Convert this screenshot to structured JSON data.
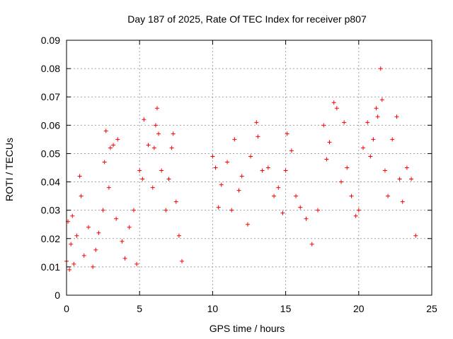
{
  "chart_data": {
    "type": "scatter",
    "title": "Day 187 of 2025, Rate Of TEC Index for receiver p807",
    "xlabel": "GPS time / hours",
    "ylabel": "ROTI / TECUs",
    "xlim": [
      0,
      25
    ],
    "ylim": [
      0,
      0.09
    ],
    "x_ticks": [
      0,
      5,
      10,
      15,
      20,
      25
    ],
    "x_tick_labels": [
      "0",
      "5",
      "10",
      "15",
      "20",
      "25"
    ],
    "y_ticks": [
      0,
      0.01,
      0.02,
      0.03,
      0.04,
      0.05,
      0.06,
      0.07,
      0.08,
      0.09
    ],
    "y_tick_labels": [
      "0",
      "0.01",
      "0.02",
      "0.03",
      "0.04",
      "0.05",
      "0.06",
      "0.07",
      "0.08",
      "0.09"
    ],
    "grid": true,
    "marker": "+",
    "color": "#ff0000",
    "data_gap_hours": [
      8.0,
      10.0
    ],
    "series": [
      {
        "points": [
          [
            0.0,
            0.012
          ],
          [
            0.1,
            0.026
          ],
          [
            0.2,
            0.009
          ],
          [
            0.3,
            0.018
          ],
          [
            0.4,
            0.028
          ],
          [
            0.5,
            0.011
          ],
          [
            0.7,
            0.021
          ],
          [
            0.9,
            0.042
          ],
          [
            1.0,
            0.035
          ],
          [
            1.2,
            0.014
          ],
          [
            1.5,
            0.024
          ],
          [
            1.8,
            0.01
          ],
          [
            2.0,
            0.016
          ],
          [
            2.2,
            0.022
          ],
          [
            2.5,
            0.03
          ],
          [
            2.6,
            0.047
          ],
          [
            2.7,
            0.058
          ],
          [
            2.9,
            0.038
          ],
          [
            3.0,
            0.052
          ],
          [
            3.2,
            0.053
          ],
          [
            3.4,
            0.027
          ],
          [
            3.5,
            0.055
          ],
          [
            3.8,
            0.019
          ],
          [
            4.0,
            0.013
          ],
          [
            4.3,
            0.024
          ],
          [
            4.6,
            0.03
          ],
          [
            4.8,
            0.011
          ],
          [
            5.0,
            0.044
          ],
          [
            5.2,
            0.041
          ],
          [
            5.3,
            0.062
          ],
          [
            5.6,
            0.053
          ],
          [
            5.9,
            0.038
          ],
          [
            6.0,
            0.052
          ],
          [
            6.1,
            0.06
          ],
          [
            6.2,
            0.066
          ],
          [
            6.3,
            0.057
          ],
          [
            6.5,
            0.044
          ],
          [
            6.8,
            0.03
          ],
          [
            7.0,
            0.041
          ],
          [
            7.2,
            0.052
          ],
          [
            7.3,
            0.057
          ],
          [
            7.5,
            0.033
          ],
          [
            7.7,
            0.021
          ],
          [
            7.9,
            0.012
          ],
          [
            10.0,
            0.049
          ],
          [
            10.2,
            0.045
          ],
          [
            10.4,
            0.031
          ],
          [
            10.6,
            0.039
          ],
          [
            11.0,
            0.047
          ],
          [
            11.3,
            0.03
          ],
          [
            11.5,
            0.055
          ],
          [
            11.8,
            0.037
          ],
          [
            12.0,
            0.042
          ],
          [
            12.4,
            0.025
          ],
          [
            12.6,
            0.049
          ],
          [
            13.0,
            0.061
          ],
          [
            13.1,
            0.056
          ],
          [
            13.4,
            0.044
          ],
          [
            13.8,
            0.045
          ],
          [
            14.2,
            0.035
          ],
          [
            14.5,
            0.038
          ],
          [
            14.8,
            0.029
          ],
          [
            15.0,
            0.044
          ],
          [
            15.1,
            0.057
          ],
          [
            15.4,
            0.051
          ],
          [
            15.7,
            0.035
          ],
          [
            16.0,
            0.031
          ],
          [
            16.4,
            0.027
          ],
          [
            16.8,
            0.018
          ],
          [
            17.2,
            0.03
          ],
          [
            17.6,
            0.06
          ],
          [
            17.8,
            0.048
          ],
          [
            18.0,
            0.054
          ],
          [
            18.3,
            0.068
          ],
          [
            18.5,
            0.066
          ],
          [
            18.8,
            0.04
          ],
          [
            19.0,
            0.061
          ],
          [
            19.2,
            0.045
          ],
          [
            19.5,
            0.035
          ],
          [
            19.8,
            0.028
          ],
          [
            20.0,
            0.03
          ],
          [
            20.3,
            0.052
          ],
          [
            20.6,
            0.061
          ],
          [
            20.8,
            0.049
          ],
          [
            21.0,
            0.055
          ],
          [
            21.2,
            0.066
          ],
          [
            21.3,
            0.063
          ],
          [
            21.5,
            0.08
          ],
          [
            21.6,
            0.069
          ],
          [
            21.8,
            0.044
          ],
          [
            22.0,
            0.035
          ],
          [
            22.3,
            0.055
          ],
          [
            22.6,
            0.063
          ],
          [
            22.8,
            0.041
          ],
          [
            23.0,
            0.033
          ],
          [
            23.3,
            0.045
          ],
          [
            23.6,
            0.041
          ],
          [
            23.9,
            0.021
          ]
        ]
      }
    ]
  }
}
